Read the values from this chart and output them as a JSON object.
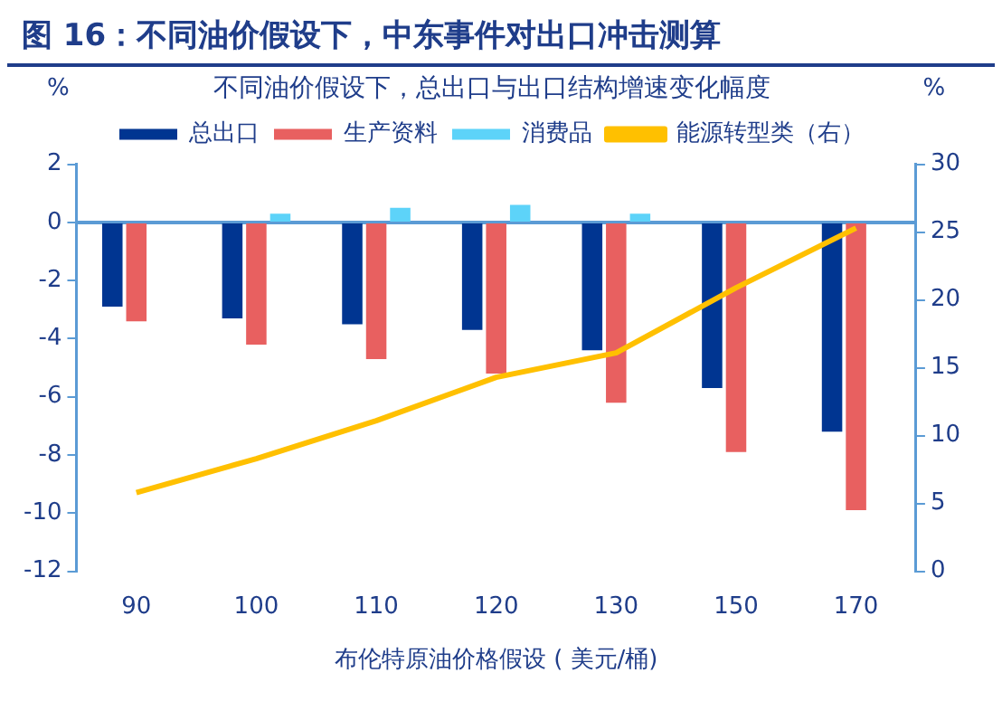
{
  "chart_data": {
    "type": "bar",
    "title": "图 16：不同油价假设下，中东事件对出口冲击测算",
    "subtitle": "不同油价假设下，总出口与出口结构增速变化幅度",
    "xlabel": "布伦特原油价格假设 ( 美元/桶)",
    "ylabel": "%",
    "y2label": "%",
    "categories": [
      "90",
      "100",
      "110",
      "120",
      "130",
      "150",
      "170"
    ],
    "series": [
      {
        "name": "总出口",
        "color": "#003591",
        "values": [
          -2.9,
          -3.3,
          -3.5,
          -3.7,
          -4.4,
          -5.7,
          -7.2
        ]
      },
      {
        "name": "生产资料",
        "color": "#e86060",
        "values": [
          -3.4,
          -4.2,
          -4.7,
          -5.2,
          -6.2,
          -7.9,
          -9.9
        ]
      },
      {
        "name": "消费品",
        "color": "#5dd3f9",
        "values": [
          0,
          0.3,
          0.5,
          0.6,
          0.3,
          0,
          0
        ]
      },
      {
        "name": "能源转型类（右）",
        "color": "#ffc000",
        "type": "line",
        "axis": "y2",
        "values": [
          5.8,
          8.3,
          11.1,
          14.3,
          16.1,
          20.9,
          25.3
        ]
      }
    ],
    "ylim": [
      -12,
      2
    ],
    "yticks": [
      -12,
      -10,
      -8,
      -6,
      -4,
      -2,
      0,
      2
    ],
    "y2lim": [
      0,
      30
    ],
    "y2ticks": [
      0,
      5,
      10,
      15,
      20,
      25,
      30
    ],
    "ref_lines": [
      {
        "axis": "y",
        "value": 0,
        "color": "#5b9bd5"
      }
    ],
    "grid": false,
    "legend": "top",
    "marker": "none",
    "line_style": "solid"
  }
}
